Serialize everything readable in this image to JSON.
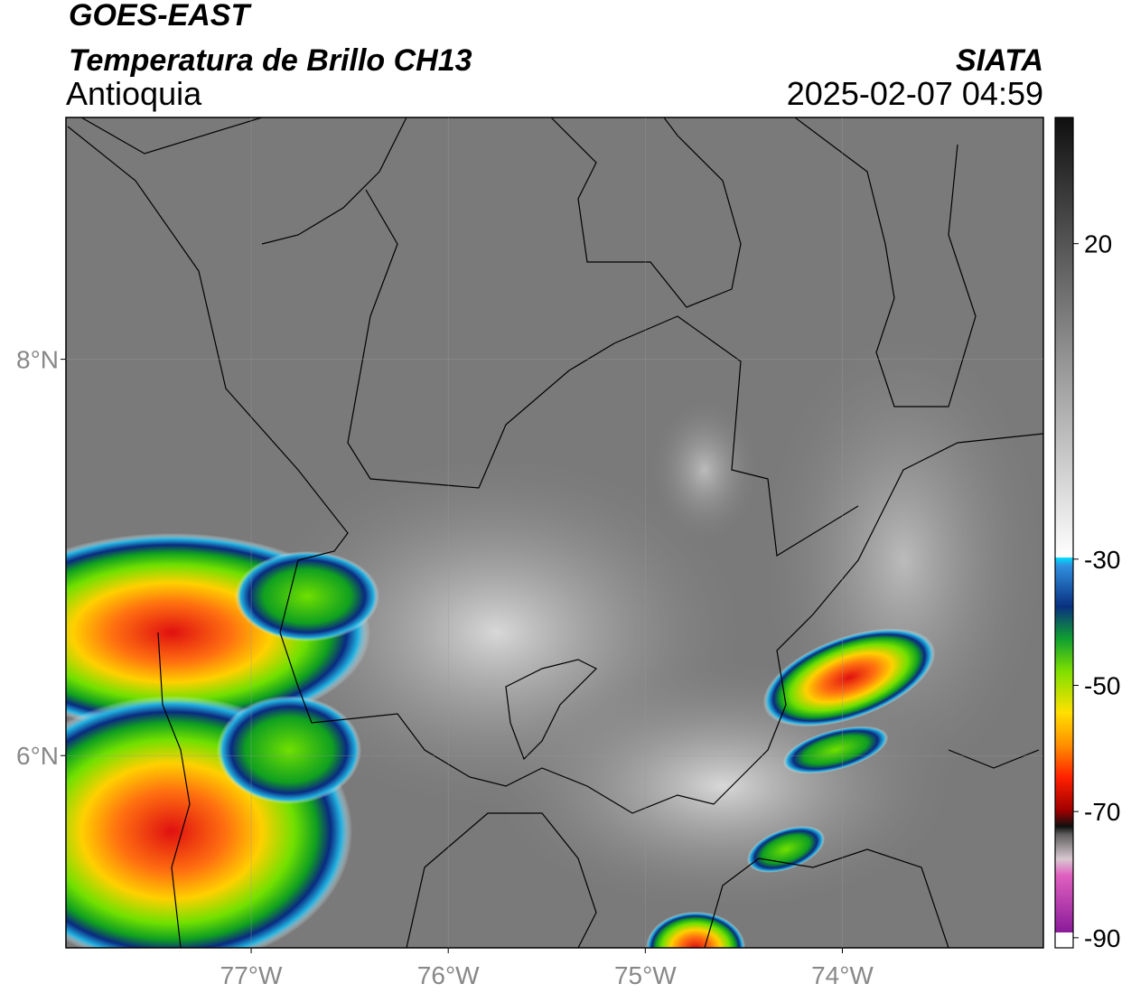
{
  "header": {
    "title": "GOES-EAST",
    "subtitle": "Temperatura de Brillo CH13",
    "region": "Antioquia",
    "source": "SIATA",
    "datetime": "2025-02-07 04:59"
  },
  "map": {
    "xlim": [
      -77.94,
      -72.98
    ],
    "ylim": [
      5.03,
      9.22
    ],
    "xticks": [
      {
        "value": -77,
        "label": "77°W"
      },
      {
        "value": -76,
        "label": "76°W"
      },
      {
        "value": -75,
        "label": "75°W"
      },
      {
        "value": -74,
        "label": "74°W"
      }
    ],
    "yticks": [
      {
        "value": 8,
        "label": "8°N"
      },
      {
        "value": 6,
        "label": "6°N"
      }
    ],
    "grid": true
  },
  "colorbar": {
    "lim": [
      -91.6,
      40
    ],
    "ticks": [
      20,
      -30,
      -50,
      -70,
      -90
    ]
  }
}
